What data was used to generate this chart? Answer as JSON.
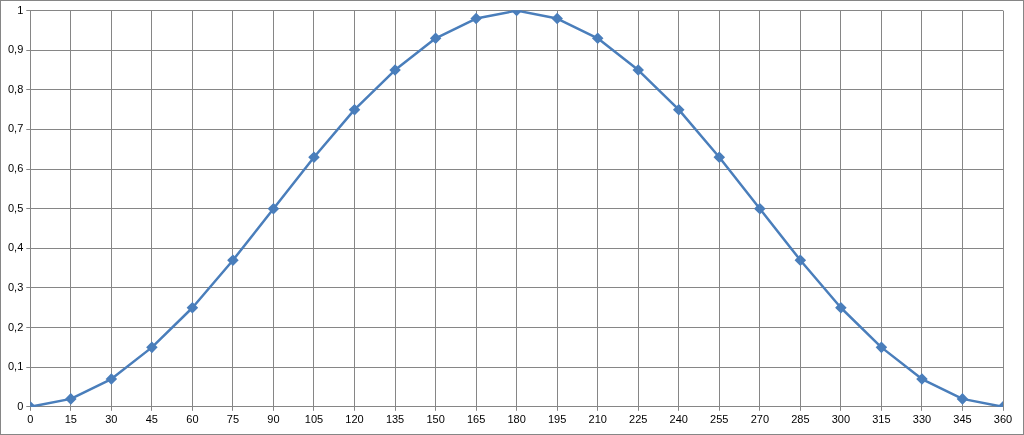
{
  "chart_data": {
    "type": "line",
    "x": [
      0,
      15,
      30,
      45,
      60,
      75,
      90,
      105,
      120,
      135,
      150,
      165,
      180,
      195,
      210,
      225,
      240,
      255,
      270,
      285,
      300,
      315,
      330,
      345,
      360
    ],
    "series": [
      {
        "color": "#4a7ebb",
        "values": [
          0,
          0.02,
          0.07,
          0.15,
          0.25,
          0.37,
          0.5,
          0.63,
          0.75,
          0.85,
          0.93,
          0.98,
          1,
          0.98,
          0.93,
          0.85,
          0.75,
          0.63,
          0.5,
          0.37,
          0.25,
          0.15,
          0.07,
          0.02,
          0
        ]
      }
    ],
    "xlim": [
      0,
      360
    ],
    "xticks": [
      0,
      15,
      30,
      45,
      60,
      75,
      90,
      105,
      120,
      135,
      150,
      165,
      180,
      195,
      210,
      225,
      240,
      255,
      270,
      285,
      300,
      315,
      330,
      345,
      360
    ],
    "ylim": [
      0,
      1
    ],
    "yticks": [
      0,
      {
        "value": 0.1,
        "label": "0,1"
      },
      {
        "value": 0.2,
        "label": "0,2"
      },
      {
        "value": 0.3,
        "label": "0,3"
      },
      {
        "value": 0.4,
        "label": "0,4"
      },
      {
        "value": 0.5,
        "label": "0,5"
      },
      {
        "value": 0.6,
        "label": "0,6"
      },
      {
        "value": 0.7,
        "label": "0,7"
      },
      {
        "value": 0.8,
        "label": "0,8"
      },
      {
        "value": 0.9,
        "label": "0,9"
      },
      1
    ],
    "grid": true,
    "legend": false,
    "marker": "diamond",
    "line_style": "solid"
  }
}
